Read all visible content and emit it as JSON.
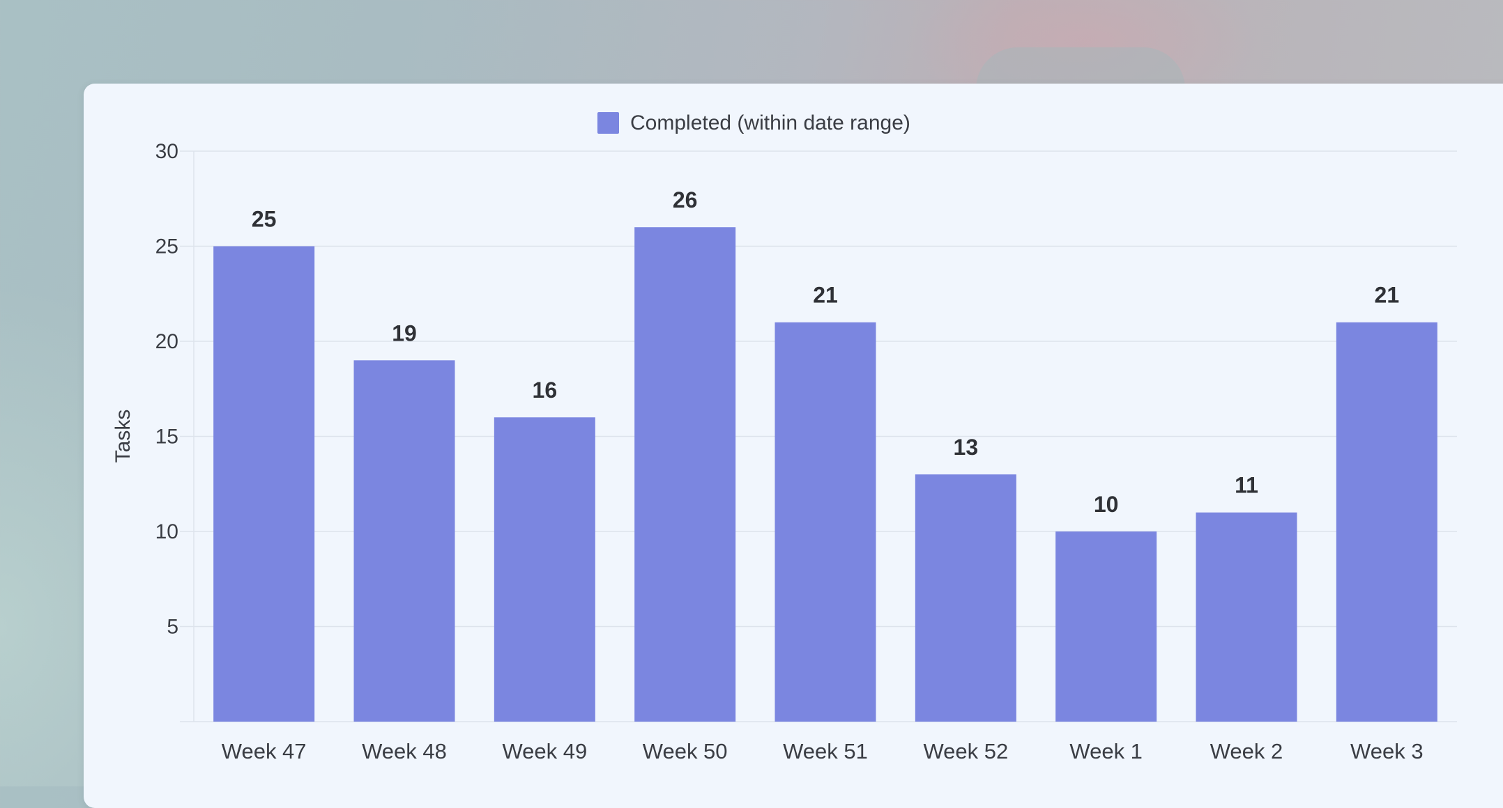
{
  "chart_data": {
    "type": "bar",
    "title": "",
    "xlabel": "",
    "ylabel": "Tasks",
    "categories": [
      "Week 47",
      "Week 48",
      "Week 49",
      "Week 50",
      "Week 51",
      "Week 52",
      "Week 1",
      "Week 2",
      "Week 3"
    ],
    "series": [
      {
        "name": "Completed (within date range)",
        "color": "#7b86e0",
        "values": [
          25,
          19,
          16,
          26,
          21,
          13,
          10,
          11,
          21
        ]
      }
    ],
    "ylim": [
      0,
      30
    ],
    "yticks": [
      5,
      10,
      15,
      20,
      25,
      30
    ],
    "grid": true,
    "legend": "top-center",
    "data_labels": true
  }
}
